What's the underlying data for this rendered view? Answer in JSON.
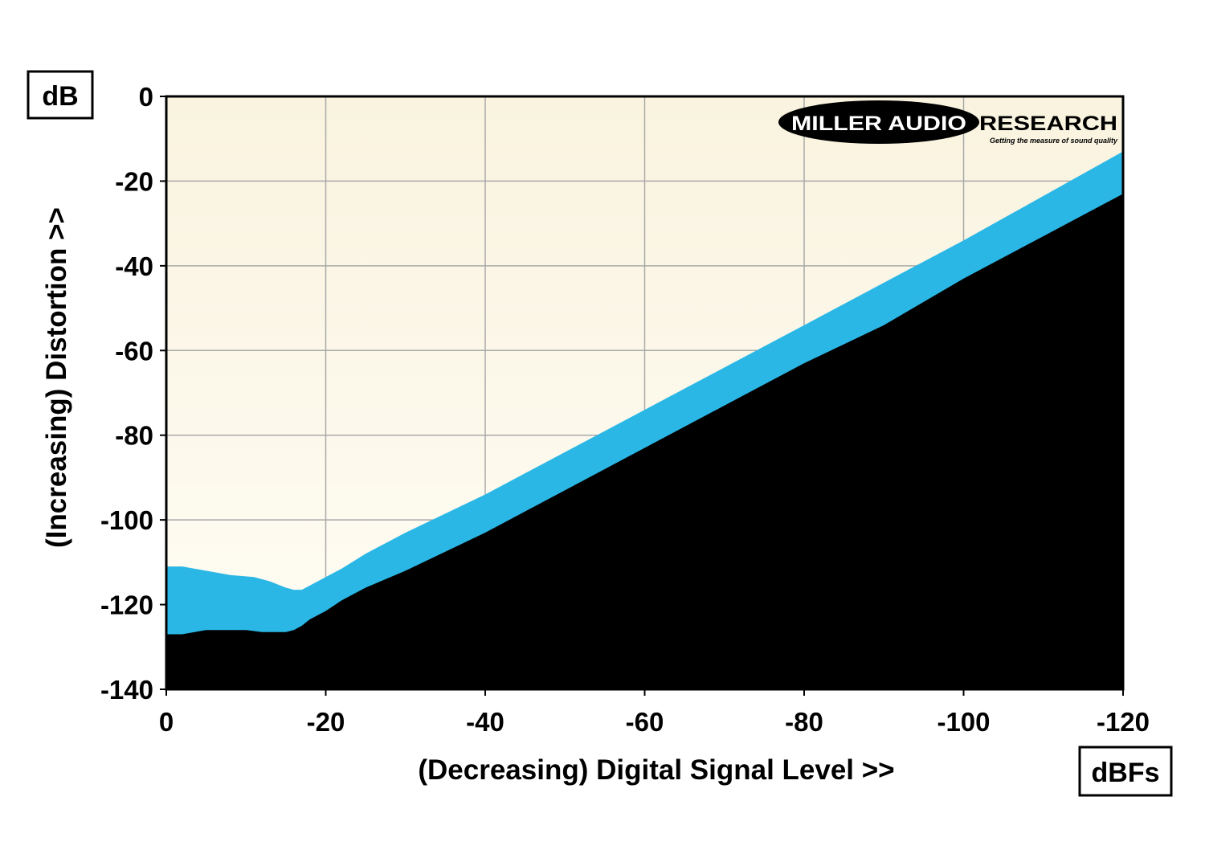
{
  "chart_data": {
    "type": "area",
    "xlabel": "(Decreasing) Digital Signal Level >>",
    "ylabel": "(Increasing) Distortion >>",
    "x_unit": "dBFs",
    "y_unit": "dB",
    "xlim": [
      0,
      -120
    ],
    "ylim": [
      -140,
      0
    ],
    "x_ticks": [
      0,
      -20,
      -40,
      -60,
      -80,
      -100,
      -120
    ],
    "x_tick_labels": [
      "0",
      "-20",
      "-40",
      "-60",
      "-80",
      "-100",
      "-120"
    ],
    "y_ticks": [
      0,
      -20,
      -40,
      -60,
      -80,
      -100,
      -120,
      -140
    ],
    "y_tick_labels": [
      "0",
      "-20",
      "-40",
      "-60",
      "-80",
      "-100",
      "-120",
      "-140"
    ],
    "grid": true,
    "plot_background": "#fbf7e4",
    "series": [
      {
        "color": "#2bb7e6",
        "x": [
          0,
          -2,
          -5,
          -8,
          -11,
          -13,
          -15,
          -16,
          -17,
          -18,
          -20,
          -22,
          -25,
          -30,
          -40,
          -50,
          -60,
          -70,
          -80,
          -90,
          -100,
          -110,
          -120
        ],
        "values": [
          -111,
          -111,
          -112,
          -113,
          -113.5,
          -114.5,
          -116,
          -116.5,
          -116.5,
          -115.5,
          -113.5,
          -111.5,
          -108,
          -103,
          -94,
          -84,
          -74,
          -64,
          -54,
          -44,
          -34,
          -23.5,
          -13
        ]
      },
      {
        "color": "#000000",
        "x": [
          0,
          -2,
          -5,
          -8,
          -10,
          -12,
          -14,
          -15,
          -16,
          -17,
          -18,
          -20,
          -22,
          -25,
          -30,
          -40,
          -50,
          -60,
          -70,
          -80,
          -90,
          -100,
          -110,
          -120
        ],
        "values": [
          -127,
          -127,
          -126,
          -126,
          -126,
          -126.5,
          -126.5,
          -126.5,
          -126,
          -125,
          -123.5,
          -121.5,
          -119,
          -116,
          -112,
          -103,
          -93,
          -83,
          -73,
          -63,
          -54,
          -43,
          -33,
          -23
        ]
      }
    ]
  },
  "logo": {
    "name_left": "MILLER AUDIO",
    "name_right": "RESEARCH",
    "tagline": "Getting the measure of sound quality"
  }
}
